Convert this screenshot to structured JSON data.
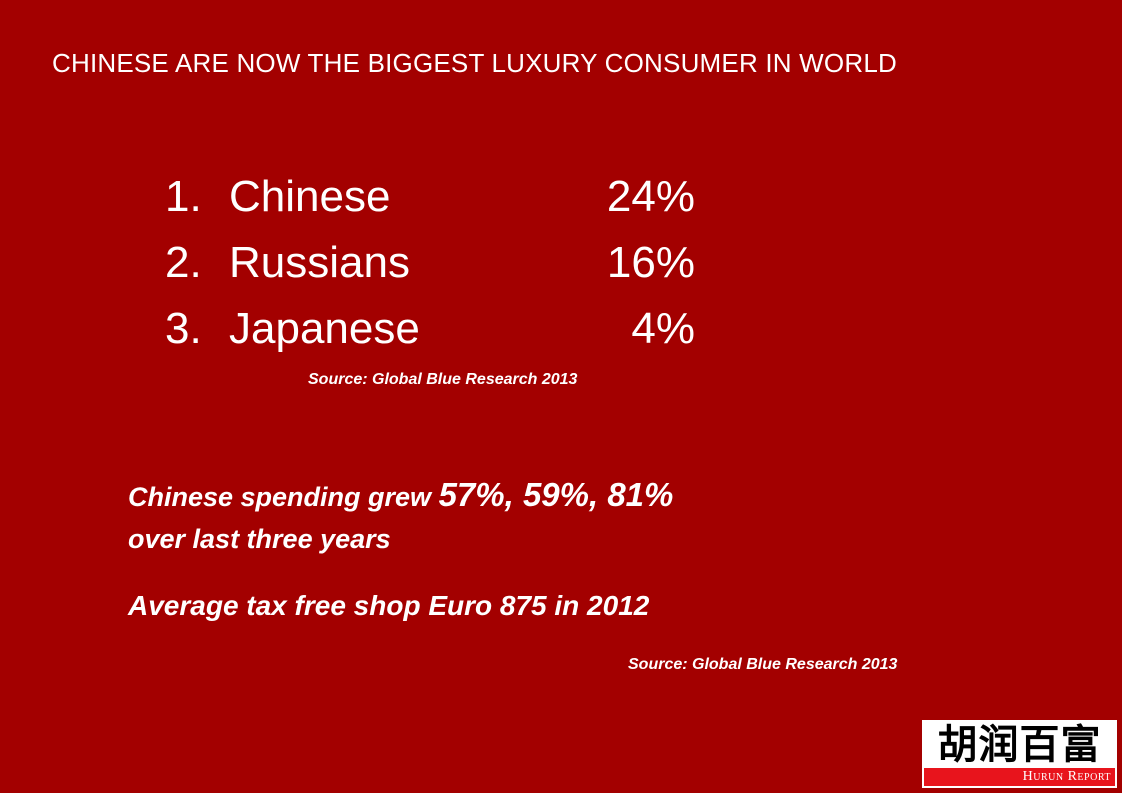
{
  "slide": {
    "title": "CHINESE ARE NOW THE BIGGEST LUXURY CONSUMER IN WORLD",
    "ranking": [
      {
        "num": "1.",
        "name": "Chinese",
        "value": "24%"
      },
      {
        "num": "2.",
        "name": "Russians",
        "value": "16%"
      },
      {
        "num": "3.",
        "name": "Japanese",
        "value": "4%"
      }
    ],
    "source_1": "Source: Global Blue Research 2013",
    "growth_prefix": "Chinese spending grew ",
    "growth_values": "57%, 59%, 81%",
    "growth_suffix": "over last three years",
    "tax_text": "Average tax free shop Euro 875 in 2012",
    "source_2": "Source: Global Blue Research 2013",
    "logo": {
      "chinese": "胡润百富",
      "english": "Hurun Report"
    }
  },
  "colors": {
    "background": "#a30000",
    "text": "#ffffff",
    "logo_band": "#e8141c"
  }
}
